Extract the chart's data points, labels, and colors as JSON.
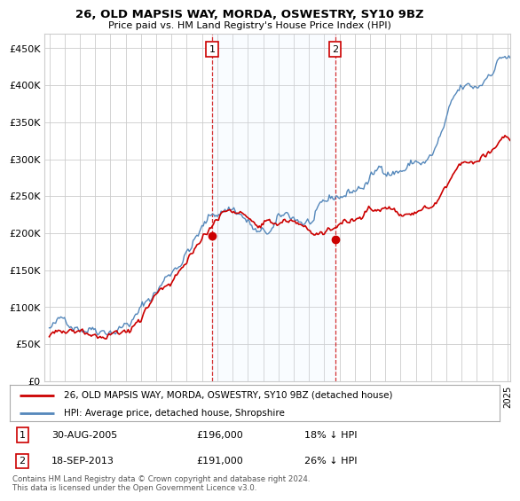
{
  "title": "26, OLD MAPSIS WAY, MORDA, OSWESTRY, SY10 9BZ",
  "subtitle": "Price paid vs. HM Land Registry's House Price Index (HPI)",
  "legend_line1": "26, OLD MAPSIS WAY, MORDA, OSWESTRY, SY10 9BZ (detached house)",
  "legend_line2": "HPI: Average price, detached house, Shropshire",
  "transaction1_date": "30-AUG-2005",
  "transaction1_price": "£196,000",
  "transaction1_hpi": "18% ↓ HPI",
  "transaction1_year": 2005.66,
  "transaction1_value": 196000,
  "transaction2_date": "18-SEP-2013",
  "transaction2_price": "£191,000",
  "transaction2_hpi": "26% ↓ HPI",
  "transaction2_year": 2013.71,
  "transaction2_value": 191000,
  "footer": "Contains HM Land Registry data © Crown copyright and database right 2024.\nThis data is licensed under the Open Government Licence v3.0.",
  "red_color": "#cc0000",
  "blue_color": "#5588bb",
  "shade_color": "#ddeeff",
  "background_color": "#ffffff",
  "grid_color": "#cccccc",
  "ylim": [
    0,
    470000
  ],
  "yticks": [
    0,
    50000,
    100000,
    150000,
    200000,
    250000,
    300000,
    350000,
    400000,
    450000
  ],
  "ytick_labels": [
    "£0",
    "£50K",
    "£100K",
    "£150K",
    "£200K",
    "£250K",
    "£300K",
    "£350K",
    "£400K",
    "£450K"
  ],
  "xlim_start": 1995.0,
  "xlim_end": 2025.2
}
